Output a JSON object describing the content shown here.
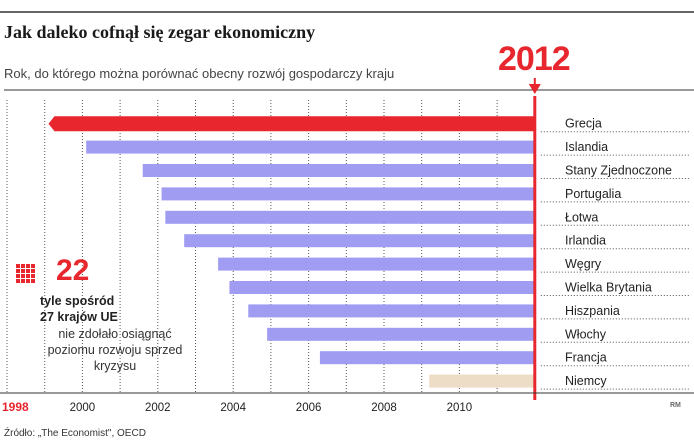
{
  "header": {
    "title": "Jak daleko cofnął się zegar ekonomiczny",
    "subtitle": "Rok, do którego można porównać obecny rozwój gospodarczy kraju"
  },
  "callout": {
    "number": "22",
    "line1": "tyle spośród",
    "line2": "27 krajów UE",
    "line3": "nie zdołało osiągnąć poziomu rozwoju sprzed kryzysu"
  },
  "footer": {
    "source": "Źródło: „The Economist\", OECD",
    "credit": "RM"
  },
  "colors": {
    "red": "#e8262d",
    "bar": "#9f9cf2",
    "bar_muted": "#eddcc6",
    "grid": "#555555"
  },
  "chart_data": {
    "type": "bar",
    "orientation": "horizontal",
    "title": "Jak daleko cofnął się zegar ekonomiczny",
    "subtitle": "Rok, do którego można porównać obecny rozwój gospodarczy kraju",
    "reference_year": 2012,
    "reference_label": "2012",
    "xlim": [
      1998,
      2012
    ],
    "x_ticks": [
      1998,
      2000,
      2002,
      2004,
      2006,
      2008,
      2010
    ],
    "x_tick_labels": [
      "1998",
      "2000",
      "2002",
      "2004",
      "2006",
      "2008",
      "2010"
    ],
    "categories": [
      "Grecja",
      "Islandia",
      "Stany Zjednoczone",
      "Portugalia",
      "Łotwa",
      "Irlandia",
      "Węgry",
      "Wielka Brytania",
      "Hiszpania",
      "Włochy",
      "Francja",
      "Niemcy"
    ],
    "values": [
      1999.1,
      2000.1,
      2001.6,
      2002.1,
      2002.2,
      2002.7,
      2003.6,
      2003.9,
      2004.4,
      2004.9,
      2006.3,
      2009.2
    ],
    "highlight": [
      "Grecja"
    ],
    "muted": [
      "Niemcy"
    ]
  }
}
